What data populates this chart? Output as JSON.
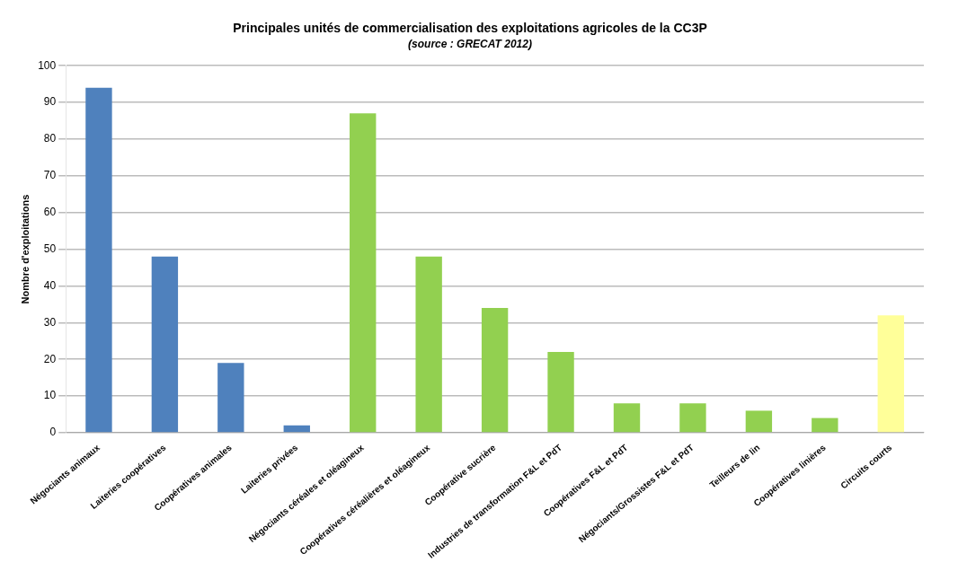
{
  "chart_data": {
    "type": "bar",
    "title": "Principales unités de commercialisation des exploitations agricoles de la CC3P",
    "subtitle": "(source : GRECAT 2012)",
    "ylabel": "Nombre d'exploitations",
    "categories": [
      "Négociants animaux",
      "Laiteries coopératives",
      "Coopératives animales",
      "Laiteries privées",
      "Négociants céréales et oléagineux",
      "Coopératives céréalières et oléagineux",
      "Coopérative sucrière",
      "Industries de transformation F&L et PdT",
      "Coopératives F&L et PdT",
      "Négociants/Grossistes F&L et PdT",
      "Teilleurs de lin",
      "Coopératives linières",
      "Circuits courts"
    ],
    "values": [
      94,
      48,
      19,
      2,
      87,
      48,
      34,
      22,
      8,
      8,
      6,
      4,
      32
    ],
    "colors": [
      "#4f81bd",
      "#4f81bd",
      "#4f81bd",
      "#4f81bd",
      "#92d050",
      "#92d050",
      "#92d050",
      "#92d050",
      "#92d050",
      "#92d050",
      "#92d050",
      "#92d050",
      "#ffff99"
    ],
    "ylim": [
      0,
      100
    ],
    "yticks": [
      0,
      10,
      20,
      30,
      40,
      50,
      60,
      70,
      80,
      90,
      100
    ],
    "grid": "y",
    "legend": false
  }
}
